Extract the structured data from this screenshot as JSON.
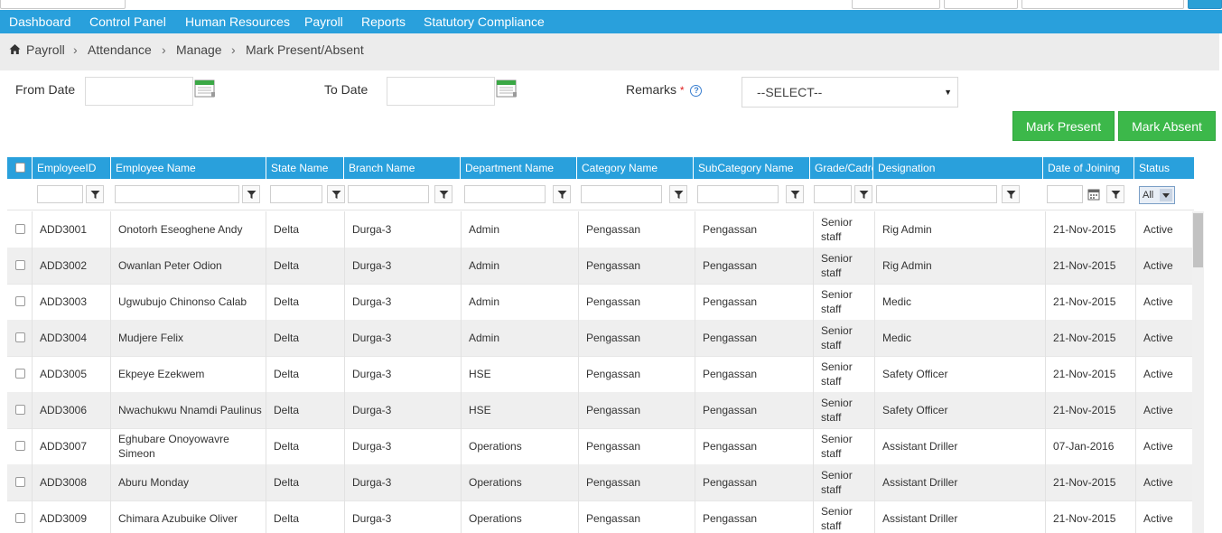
{
  "nav": [
    "Dashboard",
    "Control Panel",
    "Human Resources",
    "Payroll",
    "Reports",
    "Statutory Compliance"
  ],
  "breadcrumb": [
    "Payroll",
    "Attendance",
    "Manage",
    "Mark Present/Absent"
  ],
  "filters": {
    "from_date_label": "From Date",
    "to_date_label": "To Date",
    "remarks_label": "Remarks",
    "required_mark": "*",
    "help_glyph": "?",
    "remarks_value": "--SELECT--"
  },
  "actions": {
    "mark_present": "Mark Present",
    "mark_absent": "Mark Absent"
  },
  "columns": [
    "EmployeeID",
    "Employee Name",
    "State Name",
    "Branch Name",
    "Department Name",
    "Category Name",
    "SubCategory Name",
    "Grade/Cadre",
    "Designation",
    "Date of Joining",
    "Status"
  ],
  "status_filter": "All",
  "rows": [
    {
      "id": "ADD3001",
      "name": "Onotorh Eseoghene Andy",
      "state": "Delta",
      "branch": "Durga-3",
      "dept": "Admin",
      "category": "Pengassan",
      "subcategory": "Pengassan",
      "grade": "Senior staff",
      "designation": "Rig Admin",
      "doj": "21-Nov-2015",
      "status": "Active"
    },
    {
      "id": "ADD3002",
      "name": "Owanlan Peter Odion",
      "state": "Delta",
      "branch": "Durga-3",
      "dept": "Admin",
      "category": "Pengassan",
      "subcategory": "Pengassan",
      "grade": "Senior staff",
      "designation": "Rig Admin",
      "doj": "21-Nov-2015",
      "status": "Active"
    },
    {
      "id": "ADD3003",
      "name": "Ugwubujo Chinonso Calab",
      "state": "Delta",
      "branch": "Durga-3",
      "dept": "Admin",
      "category": "Pengassan",
      "subcategory": "Pengassan",
      "grade": "Senior staff",
      "designation": "Medic",
      "doj": "21-Nov-2015",
      "status": "Active"
    },
    {
      "id": "ADD3004",
      "name": "Mudjere Felix",
      "state": "Delta",
      "branch": "Durga-3",
      "dept": "Admin",
      "category": "Pengassan",
      "subcategory": "Pengassan",
      "grade": "Senior staff",
      "designation": "Medic",
      "doj": "21-Nov-2015",
      "status": "Active"
    },
    {
      "id": "ADD3005",
      "name": "Ekpeye Ezekwem",
      "state": "Delta",
      "branch": "Durga-3",
      "dept": "HSE",
      "category": "Pengassan",
      "subcategory": "Pengassan",
      "grade": "Senior staff",
      "designation": "Safety Officer",
      "doj": "21-Nov-2015",
      "status": "Active"
    },
    {
      "id": "ADD3006",
      "name": "Nwachukwu Nnamdi Paulinus",
      "state": "Delta",
      "branch": "Durga-3",
      "dept": "HSE",
      "category": "Pengassan",
      "subcategory": "Pengassan",
      "grade": "Senior staff",
      "designation": "Safety Officer",
      "doj": "21-Nov-2015",
      "status": "Active"
    },
    {
      "id": "ADD3007",
      "name": "Eghubare Onoyowavre Simeon",
      "state": "Delta",
      "branch": "Durga-3",
      "dept": "Operations",
      "category": "Pengassan",
      "subcategory": "Pengassan",
      "grade": "Senior staff",
      "designation": "Assistant Driller",
      "doj": "07-Jan-2016",
      "status": "Active"
    },
    {
      "id": "ADD3008",
      "name": "Aburu Monday",
      "state": "Delta",
      "branch": "Durga-3",
      "dept": "Operations",
      "category": "Pengassan",
      "subcategory": "Pengassan",
      "grade": "Senior staff",
      "designation": "Assistant Driller",
      "doj": "21-Nov-2015",
      "status": "Active"
    },
    {
      "id": "ADD3009",
      "name": "Chimara Azubuike Oliver",
      "state": "Delta",
      "branch": "Durga-3",
      "dept": "Operations",
      "category": "Pengassan",
      "subcategory": "Pengassan",
      "grade": "Senior staff",
      "designation": "Assistant Driller",
      "doj": "21-Nov-2015",
      "status": "Active"
    }
  ]
}
